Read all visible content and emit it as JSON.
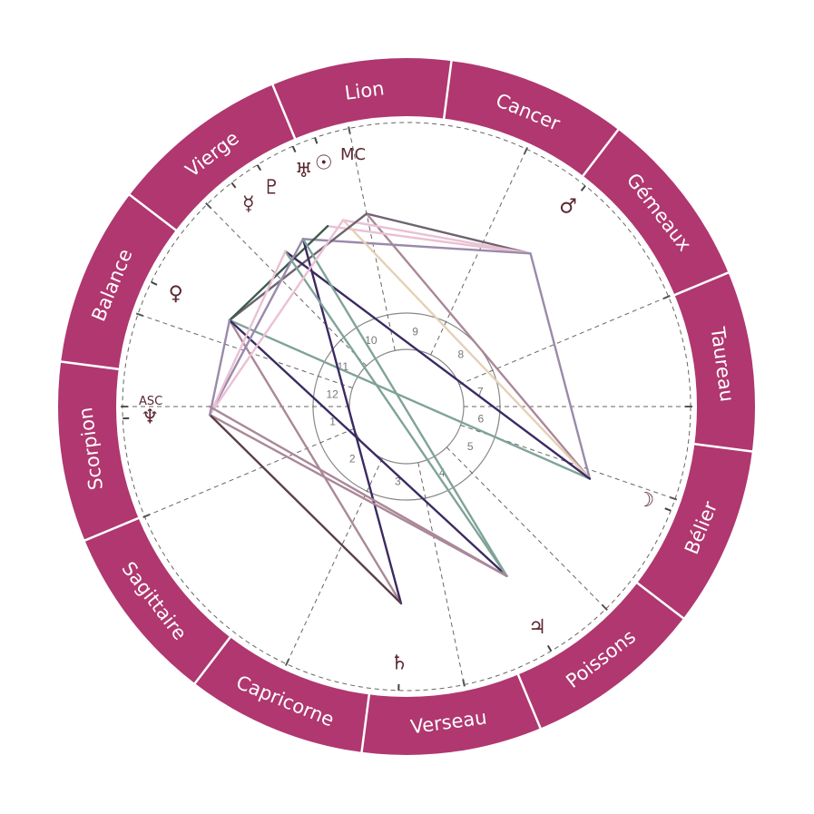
{
  "colors": {
    "ring": "#b0376f",
    "glyph": "#5a2630",
    "dash": "#666666"
  },
  "zodiac_offset_deg": -37.4,
  "signs": [
    {
      "name": "Bélier"
    },
    {
      "name": "Taureau"
    },
    {
      "name": "Gémeaux"
    },
    {
      "name": "Cancer"
    },
    {
      "name": "Lion"
    },
    {
      "name": "Vierge"
    },
    {
      "name": "Balance"
    },
    {
      "name": "Scorpion"
    },
    {
      "name": "Sagittaire"
    },
    {
      "name": "Capricorne"
    },
    {
      "name": "Verseau"
    },
    {
      "name": "Poissons"
    }
  ],
  "house_cusps_deg": [
    180,
    202.8,
    245,
    281.7,
    314.6,
    341,
    0,
    22.8,
    65,
    101.7,
    134.6,
    161
  ],
  "houses": [
    "1",
    "2",
    "3",
    "4",
    "5",
    "6",
    "7",
    "8",
    "9",
    "10",
    "11",
    "12"
  ],
  "axes": {
    "asc_label": "ASC",
    "mc_label": "MC"
  },
  "planets": [
    {
      "key": "sun",
      "name": "Sun",
      "glyph": "☉",
      "angle": 108.8
    },
    {
      "key": "uranus",
      "name": "Uranus",
      "glyph": "♅",
      "angle": 113.6
    },
    {
      "key": "pluto",
      "name": "Pluto",
      "glyph": "♇",
      "angle": 121.7
    },
    {
      "key": "mercury",
      "name": "Mercury",
      "glyph": "☿",
      "angle": 128
    },
    {
      "key": "venus",
      "name": "Venus",
      "glyph": "♀",
      "angle": 154
    },
    {
      "key": "neptune",
      "name": "Neptune",
      "glyph": "♆",
      "angle": 182.4
    },
    {
      "key": "mars",
      "name": "Mars",
      "glyph": "♂",
      "angle": 51
    },
    {
      "key": "moon",
      "name": "Moon",
      "glyph": "☽",
      "angle": -21.5
    },
    {
      "key": "jupiter",
      "name": "Jupiter",
      "glyph": "♃",
      "angle": -59.4
    },
    {
      "key": "saturn",
      "name": "Saturn",
      "glyph": "♄",
      "angle": -91.6
    }
  ],
  "points": {
    "mc": 101.7,
    "asc": 180
  },
  "aspects": [
    {
      "a": "mc",
      "b": "mars",
      "color": "#6e6470"
    },
    {
      "a": "mars",
      "b": "moon",
      "color": "#9a8aaa"
    },
    {
      "a": "mc",
      "b": "moon",
      "color": "#aa8898"
    },
    {
      "a": "sun",
      "b": "mars",
      "color": "#eac0d4"
    },
    {
      "a": "uranus",
      "b": "mars",
      "color": "#eac0d4"
    },
    {
      "a": "pluto",
      "b": "mars",
      "color": "#9a8aaa"
    },
    {
      "a": "sun",
      "b": "moon",
      "color": "#e6d0b8"
    },
    {
      "a": "venus",
      "b": "mc",
      "color": "#6e6470"
    },
    {
      "a": "venus",
      "b": "uranus",
      "color": "#3d5c4c"
    },
    {
      "a": "venus",
      "b": "moon",
      "color": "#80a398"
    },
    {
      "a": "venus",
      "b": "saturn",
      "color": "#aa8898"
    },
    {
      "a": "venus",
      "b": "jupiter",
      "color": "#3b2a62"
    },
    {
      "a": "mercury",
      "b": "moon",
      "color": "#3b2a62"
    },
    {
      "a": "pluto",
      "b": "saturn",
      "color": "#3b2a62"
    },
    {
      "a": "pluto",
      "b": "jupiter",
      "color": "#80a398"
    },
    {
      "a": "mercury",
      "b": "jupiter",
      "color": "#80a398"
    },
    {
      "a": "neptune",
      "b": "pluto",
      "color": "#9a8aaa"
    },
    {
      "a": "neptune",
      "b": "mercury",
      "color": "#eac0d4"
    },
    {
      "a": "neptune",
      "b": "sun",
      "color": "#eac0d4"
    },
    {
      "a": "neptune",
      "b": "jupiter",
      "color": "#aa8898"
    },
    {
      "a": "asc",
      "b": "jupiter",
      "color": "#aa8898"
    },
    {
      "a": "neptune",
      "b": "saturn",
      "color": "#5c4048"
    },
    {
      "a": "venus",
      "b": "neptune",
      "color": "#9a8aaa"
    }
  ]
}
